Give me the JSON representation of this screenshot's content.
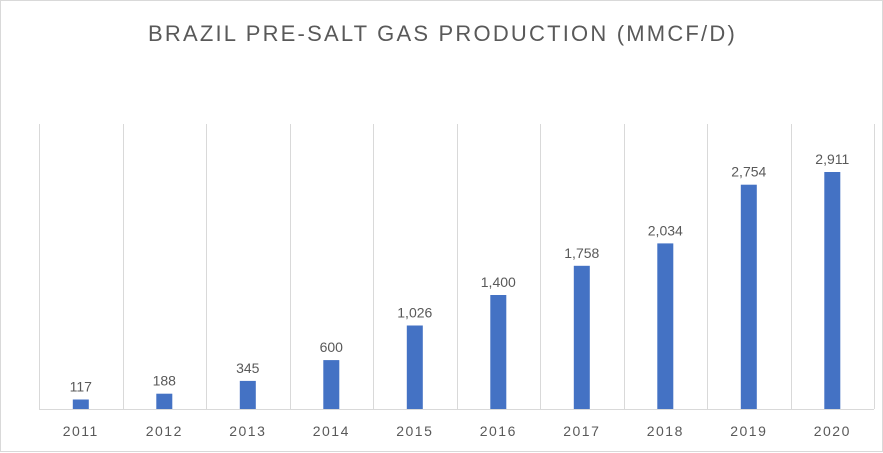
{
  "chart_data": {
    "type": "bar",
    "title": "BRAZIL PRE-SALT GAS PRODUCTION (MMCF/D)",
    "xlabel": "",
    "ylabel": "",
    "categories": [
      "2011",
      "2012",
      "2013",
      "2014",
      "2015",
      "2016",
      "2017",
      "2018",
      "2019",
      "2020"
    ],
    "values": [
      117,
      188,
      345,
      600,
      1026,
      1400,
      1758,
      2034,
      2754,
      2911
    ],
    "data_labels": [
      "117",
      "188",
      "345",
      "600",
      "1,026",
      "1,400",
      "1,758",
      "2,034",
      "2,754",
      "2,911"
    ],
    "ylim": [
      0,
      3500
    ],
    "grid": "vertical category separators",
    "legend": "none",
    "bar_color": "#4472C4",
    "gridline_color": "#d9d9d9",
    "text_color": "#595959"
  }
}
